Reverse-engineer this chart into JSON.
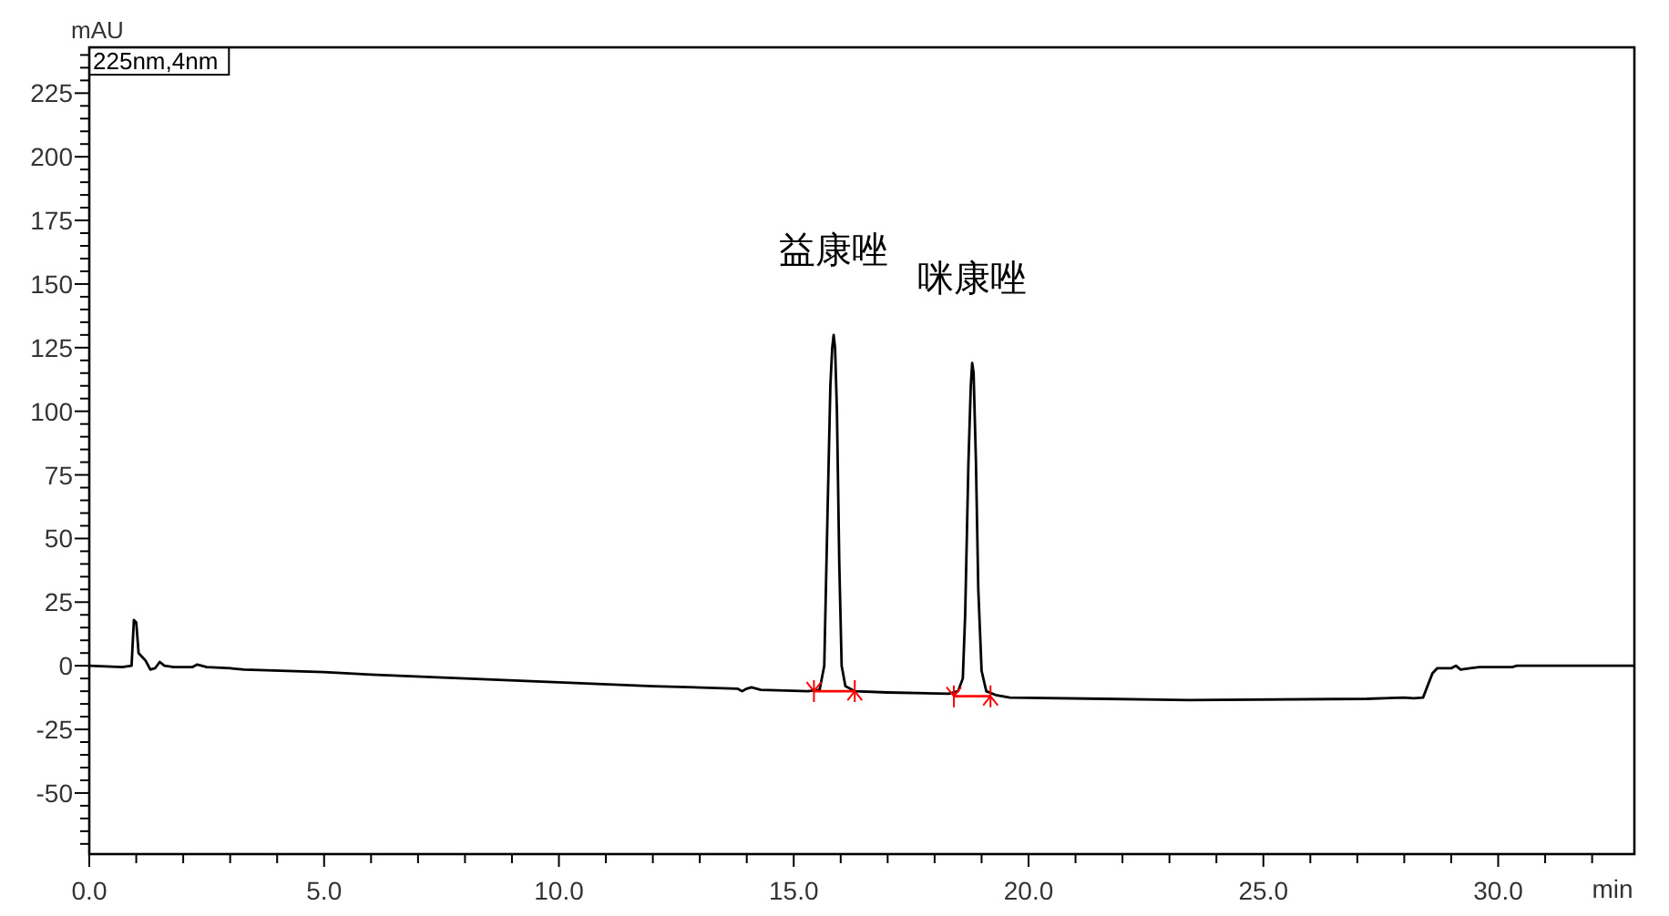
{
  "chart_data": {
    "type": "line",
    "xlabel": "min",
    "ylabel": "mAU",
    "xlim": [
      0,
      32.9
    ],
    "ylim": [
      -74,
      243
    ],
    "xticks": [
      {
        "value": 0,
        "label": "0.0"
      },
      {
        "value": 1,
        "label": null
      },
      {
        "value": 2,
        "label": null
      },
      {
        "value": 3,
        "label": null
      },
      {
        "value": 4,
        "label": null
      },
      {
        "value": 5,
        "label": "5.0"
      },
      {
        "value": 6,
        "label": null
      },
      {
        "value": 7,
        "label": null
      },
      {
        "value": 8,
        "label": null
      },
      {
        "value": 9,
        "label": null
      },
      {
        "value": 10,
        "label": "10.0"
      },
      {
        "value": 11,
        "label": null
      },
      {
        "value": 12,
        "label": null
      },
      {
        "value": 13,
        "label": null
      },
      {
        "value": 14,
        "label": null
      },
      {
        "value": 15,
        "label": "15.0"
      },
      {
        "value": 16,
        "label": null
      },
      {
        "value": 17,
        "label": null
      },
      {
        "value": 18,
        "label": null
      },
      {
        "value": 19,
        "label": null
      },
      {
        "value": 20,
        "label": "20.0"
      },
      {
        "value": 21,
        "label": null
      },
      {
        "value": 22,
        "label": null
      },
      {
        "value": 23,
        "label": null
      },
      {
        "value": 24,
        "label": null
      },
      {
        "value": 25,
        "label": "25.0"
      },
      {
        "value": 26,
        "label": null
      },
      {
        "value": 27,
        "label": null
      },
      {
        "value": 28,
        "label": null
      },
      {
        "value": 29,
        "label": null
      },
      {
        "value": 30,
        "label": "30.0"
      },
      {
        "value": 31,
        "label": null
      },
      {
        "value": 32,
        "label": null
      }
    ],
    "yticks": [
      {
        "value": -70,
        "label": null
      },
      {
        "value": -65,
        "label": null
      },
      {
        "value": -60,
        "label": null
      },
      {
        "value": -55,
        "label": null
      },
      -50,
      {
        "value": -45,
        "label": null
      },
      {
        "value": -40,
        "label": null
      },
      {
        "value": -35,
        "label": null
      },
      {
        "value": -30,
        "label": null
      },
      -25,
      {
        "value": -20,
        "label": null
      },
      {
        "value": -15,
        "label": null
      },
      {
        "value": -10,
        "label": null
      },
      {
        "value": -5,
        "label": null
      },
      0,
      {
        "value": 5,
        "label": null
      },
      {
        "value": 10,
        "label": null
      },
      {
        "value": 15,
        "label": null
      },
      {
        "value": 20,
        "label": null
      },
      25,
      {
        "value": 30,
        "label": null
      },
      {
        "value": 35,
        "label": null
      },
      {
        "value": 40,
        "label": null
      },
      {
        "value": 45,
        "label": null
      },
      50,
      {
        "value": 55,
        "label": null
      },
      {
        "value": 60,
        "label": null
      },
      {
        "value": 65,
        "label": null
      },
      {
        "value": 70,
        "label": null
      },
      75,
      {
        "value": 80,
        "label": null
      },
      {
        "value": 85,
        "label": null
      },
      {
        "value": 90,
        "label": null
      },
      {
        "value": 95,
        "label": null
      },
      100,
      {
        "value": 105,
        "label": null
      },
      {
        "value": 110,
        "label": null
      },
      {
        "value": 115,
        "label": null
      },
      {
        "value": 120,
        "label": null
      },
      125,
      {
        "value": 130,
        "label": null
      },
      {
        "value": 135,
        "label": null
      },
      {
        "value": 140,
        "label": null
      },
      {
        "value": 145,
        "label": null
      },
      150,
      {
        "value": 155,
        "label": null
      },
      {
        "value": 160,
        "label": null
      },
      {
        "value": 165,
        "label": null
      },
      {
        "value": 170,
        "label": null
      },
      175,
      {
        "value": 180,
        "label": null
      },
      {
        "value": 185,
        "label": null
      },
      {
        "value": 190,
        "label": null
      },
      {
        "value": 195,
        "label": null
      },
      200,
      {
        "value": 205,
        "label": null
      },
      {
        "value": 210,
        "label": null
      },
      {
        "value": 215,
        "label": null
      },
      {
        "value": 220,
        "label": null
      },
      225,
      {
        "value": 230,
        "label": null
      },
      {
        "value": 235,
        "label": null
      },
      {
        "value": 240,
        "label": null
      }
    ],
    "grid": false,
    "series": [
      {
        "color": "#000000",
        "x": [
          0,
          0.7,
          0.9,
          0.95,
          1.0,
          1.05,
          1.2,
          1.3,
          1.4,
          1.5,
          1.6,
          1.8,
          2.2,
          2.3,
          2.5,
          3.0,
          3.3,
          5.0,
          6.0,
          8.0,
          10.0,
          12.0,
          13.8,
          13.9,
          14.0,
          14.1,
          14.3,
          15.3,
          15.55,
          15.65,
          15.72,
          15.78,
          15.82,
          15.85,
          15.88,
          15.92,
          15.97,
          16.02,
          16.1,
          16.3,
          17.0,
          18.3,
          18.5,
          18.6,
          18.65,
          18.72,
          18.77,
          18.8,
          18.83,
          18.88,
          18.93,
          19.0,
          19.1,
          19.3,
          19.6,
          21.6,
          23.4,
          27.2,
          28.0,
          28.2,
          28.4,
          28.6,
          28.7,
          29.0,
          29.05,
          29.1,
          29.2,
          29.4,
          29.6,
          30.3,
          30.4,
          32.9
        ],
        "values": [
          0,
          -0.5,
          0,
          18,
          17,
          5,
          2,
          -1.5,
          -1,
          1.5,
          0,
          -0.5,
          -0.5,
          0.5,
          -0.5,
          -1,
          -1.5,
          -2.5,
          -3.5,
          -5,
          -6.5,
          -8,
          -9,
          -10,
          -9,
          -8.5,
          -9.5,
          -10,
          -9.5,
          0,
          60,
          110,
          125,
          130,
          125,
          100,
          40,
          0,
          -8,
          -10,
          -10.5,
          -11,
          -10,
          -5,
          20,
          80,
          110,
          119,
          115,
          80,
          30,
          -2,
          -10,
          -11.5,
          -12.5,
          -13,
          -13.5,
          -13,
          -12.5,
          -12.8,
          -12.5,
          -3,
          -1,
          -1,
          -0.5,
          0,
          -1.5,
          -1,
          -0.5,
          -0.5,
          0,
          0
        ]
      },
      {
        "color": "#ff0000",
        "marker": "cross",
        "x": [
          15.43,
          16.3
        ],
        "values": [
          -10,
          -10
        ]
      },
      {
        "color": "#ff0000",
        "marker": "cross",
        "x": [
          18.41,
          19.19
        ],
        "values": [
          -12,
          -12
        ]
      }
    ],
    "annotations": [
      "225nm,4nm",
      {
        "text": "益康唑",
        "x": 15.85,
        "y": 130
      },
      {
        "text": "咪康唑",
        "x": 18.8,
        "y": 119
      }
    ]
  }
}
